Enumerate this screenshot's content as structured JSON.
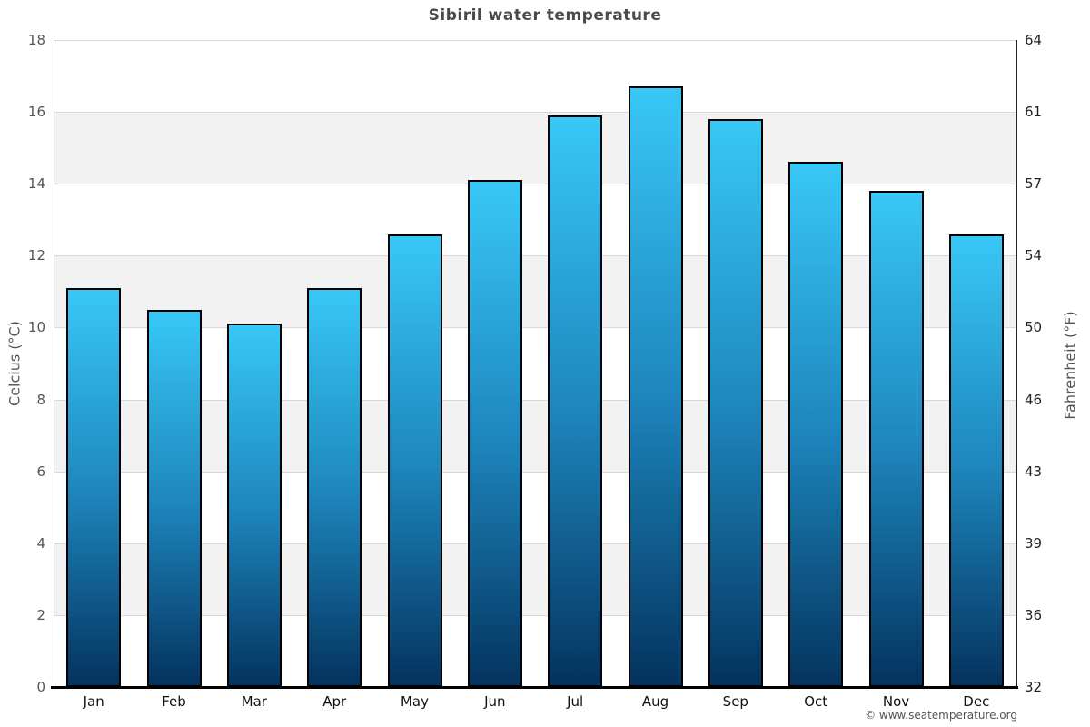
{
  "header": {
    "title": "Sibiril water temperature"
  },
  "chart_data": {
    "type": "bar",
    "title": "Sibiril water temperature",
    "categories": [
      "Jan",
      "Feb",
      "Mar",
      "Apr",
      "May",
      "Jun",
      "Jul",
      "Aug",
      "Sep",
      "Oct",
      "Nov",
      "Dec"
    ],
    "values": [
      11.1,
      10.5,
      10.1,
      11.1,
      12.6,
      14.1,
      15.9,
      16.7,
      15.8,
      14.6,
      13.8,
      12.6
    ],
    "series_name": "Water temperature",
    "xlabel": "",
    "ylabel_left": "Celcius (°C)",
    "ylabel_right": "Fahrenheit (°F)",
    "ylim": [
      0,
      18
    ],
    "ytick_step": 2,
    "yticks_left": [
      "18",
      "16",
      "14",
      "12",
      "10",
      "8",
      "6",
      "4",
      "2",
      "0"
    ],
    "yticks_right": [
      "64",
      "61",
      "57",
      "54",
      "50",
      "46",
      "43",
      "39",
      "36",
      "32"
    ],
    "legend": "none",
    "grid": "alternating horizontal bands every 2 degrees, light gridlines",
    "colors": {
      "bar_gradient_top": "#38c8f6",
      "bar_gradient_mid": "#1d85bc",
      "bar_gradient_bottom": "#04335e",
      "bar_border": "#000000",
      "band_white": "#ffffff",
      "band_gray": "#f2f2f2",
      "gridline": "#d8d8d8",
      "axis_left": "#c0c0c0",
      "axis_right": "#222222",
      "axis_bottom": "#000000",
      "title_text": "#4a4a4a",
      "tick_text_left": "#555555",
      "tick_text_right": "#222222",
      "month_text": "#111111"
    }
  },
  "footer": {
    "credit": "© www.seatemperature.org"
  }
}
